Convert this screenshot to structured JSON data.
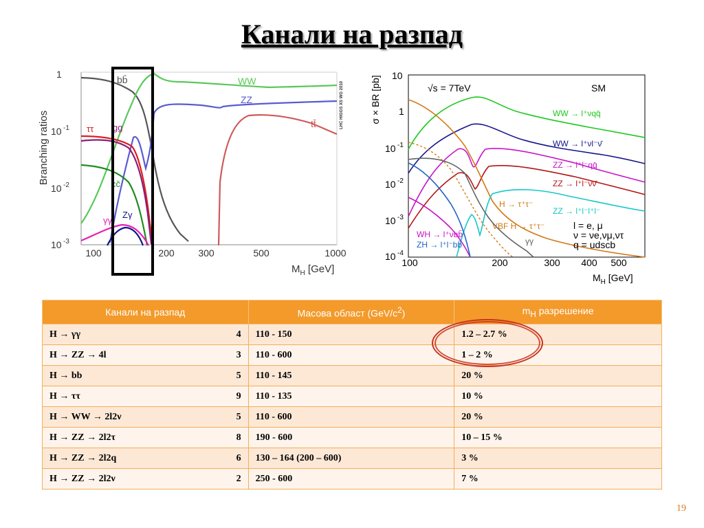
{
  "slide": {
    "title": "Канали на разпад",
    "page_number": "19"
  },
  "left_plot": {
    "y_title": "Branching ratios",
    "x_title": "M",
    "x_title_sub": "H",
    "x_title_unit": " [GeV]",
    "watermark": "LHC HIGGS XS WG 2010",
    "y_ticks": [
      {
        "base": "1",
        "exp": ""
      },
      {
        "base": "10",
        "exp": "-1"
      },
      {
        "base": "10",
        "exp": "-2"
      },
      {
        "base": "10",
        "exp": "-3"
      }
    ],
    "x_ticks": [
      "100",
      "200",
      "300",
      "500",
      "1000"
    ],
    "channels": [
      {
        "key": "bb",
        "label": "bb̄",
        "color": "#555555"
      },
      {
        "key": "WW",
        "label": "WW",
        "color": "#5ac85a"
      },
      {
        "key": "ZZ",
        "label": "ZZ",
        "color": "#5a5ad2"
      },
      {
        "key": "tt",
        "label": "tt̄",
        "color": "#cd5a5a"
      },
      {
        "key": "tautau",
        "label": "ττ",
        "color": "#dc1e1e"
      },
      {
        "key": "gg",
        "label": "gg",
        "color": "#8c1e78"
      },
      {
        "key": "cc",
        "label": "cc̄",
        "color": "#1e8c1e"
      },
      {
        "key": "gamgam",
        "label": "γγ",
        "color": "#e61eb4"
      },
      {
        "key": "Zgam",
        "label": "Zγ",
        "color": "#14148c"
      }
    ]
  },
  "right_plot": {
    "y_title": "σ × BR [pb]",
    "x_title": "M",
    "x_title_sub": "H",
    "x_title_unit": " [GeV]",
    "energy": "√s = 7TeV",
    "model": "SM",
    "y_ticks": [
      {
        "base": "10",
        "exp": ""
      },
      {
        "base": "1",
        "exp": ""
      },
      {
        "base": "10",
        "exp": "-1"
      },
      {
        "base": "10",
        "exp": "-2"
      },
      {
        "base": "10",
        "exp": "-3"
      },
      {
        "base": "10",
        "exp": "-4"
      }
    ],
    "x_ticks": [
      "100",
      "200",
      "300",
      "400",
      "500"
    ],
    "channels": [
      {
        "key": "WWlnqq",
        "label": "WW → l⁺νqq̄",
        "color": "#1ec81e"
      },
      {
        "key": "WWlnln",
        "label": "WW → l⁺νl⁻ν̄",
        "color": "#14148c"
      },
      {
        "key": "ZZllqq",
        "label": "ZZ → l⁺l⁻qq̄",
        "color": "#c814c8"
      },
      {
        "key": "ZZllnn",
        "label": "ZZ → l⁺l⁻νν̄",
        "color": "#b41414"
      },
      {
        "key": "Htautau",
        "label": "H → τ⁺τ⁻",
        "color": "#d27814"
      },
      {
        "key": "ZZ4l",
        "label": "ZZ → l⁺l⁻l⁺l⁻",
        "color": "#14c8c8"
      },
      {
        "key": "VBF",
        "label": "VBF H → τ⁺τ⁻",
        "color": "#d27814"
      },
      {
        "key": "WH",
        "label": "WH → l⁺νbb̄",
        "color": "#c814c8"
      },
      {
        "key": "ZH",
        "label": "ZH → l⁺l⁻bb̄",
        "color": "#1e64c8"
      },
      {
        "key": "gamgam",
        "label": "γγ",
        "color": "#646464"
      }
    ],
    "legend_lines": [
      "l = e, μ",
      "ν = νe,νμ,ντ",
      "q = udscb"
    ]
  },
  "table": {
    "headers": {
      "channel": "Канали на разпад",
      "mass_prefix": "Масова област (GeV/c",
      "mass_sup": "2",
      "mass_suffix": ")",
      "res_prefix": "m",
      "res_sub": "H",
      "res_suffix": " разрешение"
    },
    "rows": [
      {
        "channel": "H → γγ",
        "n": "4",
        "mass": "110 - 150",
        "res": "1.2 – 2.7 %"
      },
      {
        "channel": "H → ZZ → 4l",
        "n": "3",
        "mass": "110 - 600",
        "res": "1 – 2 %"
      },
      {
        "channel": "H → bb",
        "n": "5",
        "mass": "110 - 145",
        "res": "20 %"
      },
      {
        "channel": "H → ττ",
        "n": "9",
        "mass": "110 - 135",
        "res": "10 %"
      },
      {
        "channel": "H → WW → 2l2ν",
        "n": "5",
        "mass": "110 - 600",
        "res": "20 %"
      },
      {
        "channel": "H → ZZ → 2l2τ",
        "n": "8",
        "mass": "190 - 600",
        "res": "10 – 15 %"
      },
      {
        "channel": "H → ZZ → 2l2q",
        "n": "6",
        "mass": "130 – 164 (200 – 600)",
        "res": "3 %"
      },
      {
        "channel": "H → ZZ → 2l2ν",
        "n": "2",
        "mass": "250 - 600",
        "res": "7 %"
      }
    ]
  },
  "colors": {
    "header": "#f39a2b",
    "row_odd": "#fde8d6",
    "row_even": "#fef4ec",
    "marker": "#c8321e",
    "page_number": "#e07820"
  }
}
